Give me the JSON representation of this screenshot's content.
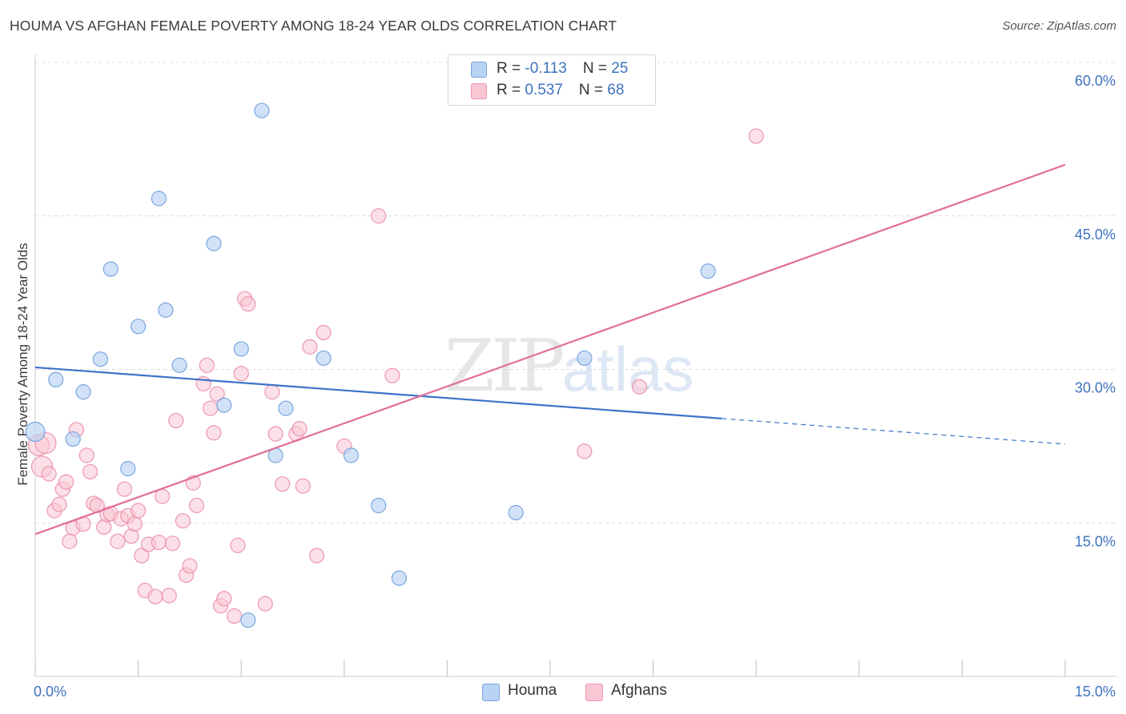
{
  "header": {
    "title": "HOUMA VS AFGHAN FEMALE POVERTY AMONG 18-24 YEAR OLDS CORRELATION CHART",
    "source": "Source: ZipAtlas.com"
  },
  "watermark": {
    "zip": "ZIP",
    "atlas": "atlas"
  },
  "colors": {
    "houma_fill": "#b9d3f5",
    "houma_stroke": "#7aa6de",
    "houma_line": "#3d72c8",
    "afghans_fill": "#f9c6d4",
    "afghans_stroke": "#ec95b0",
    "afghans_line": "#e06e97",
    "tick_label": "#3d72c0",
    "grid": "#dcdcdc"
  },
  "legend": {
    "rows": [
      {
        "r_label": "R = ",
        "r_value": "-0.113",
        "n_label": "N = ",
        "n_value": "25"
      },
      {
        "r_label": "R = ",
        "r_value": "0.537",
        "n_label": "N = ",
        "n_value": "68"
      }
    ],
    "bottom": [
      "Houma",
      "Afghans"
    ]
  },
  "chart_data": {
    "type": "scatter",
    "title": "HOUMA VS AFGHAN FEMALE POVERTY AMONG 18-24 YEAR OLDS CORRELATION CHART",
    "xlabel": "",
    "ylabel": "Female Poverty Among 18-24 Year Olds",
    "xlim": [
      0,
      15
    ],
    "ylim": [
      0,
      60
    ],
    "x_tick_labels": [
      "0.0%",
      "15.0%"
    ],
    "y_ticks": [
      15,
      30,
      45,
      60
    ],
    "y_tick_labels": [
      "15.0%",
      "30.0%",
      "45.0%",
      "60.0%"
    ],
    "grid": true,
    "legend_position": "top-center",
    "series": [
      {
        "name": "Houma",
        "r": -0.113,
        "n": 25,
        "trend": {
          "x0": 0,
          "y0": 30.2,
          "x1": 10,
          "y1": 25.2,
          "dash_to_x": 15,
          "dash_to_y": 22.7
        },
        "points": [
          [
            0.0,
            23.9
          ],
          [
            0.3,
            29.0
          ],
          [
            0.55,
            23.2
          ],
          [
            0.7,
            27.8
          ],
          [
            0.95,
            31.0
          ],
          [
            1.1,
            39.8
          ],
          [
            1.35,
            20.3
          ],
          [
            1.5,
            34.2
          ],
          [
            1.8,
            46.7
          ],
          [
            1.9,
            35.8
          ],
          [
            2.1,
            30.4
          ],
          [
            2.6,
            42.3
          ],
          [
            2.75,
            26.5
          ],
          [
            3.0,
            32.0
          ],
          [
            3.1,
            5.5
          ],
          [
            3.3,
            55.3
          ],
          [
            3.5,
            21.6
          ],
          [
            3.65,
            26.2
          ],
          [
            4.2,
            31.1
          ],
          [
            4.6,
            21.6
          ],
          [
            5.0,
            16.7
          ],
          [
            5.3,
            9.6
          ],
          [
            7.0,
            16.0
          ],
          [
            8.0,
            31.1
          ],
          [
            9.8,
            39.6
          ]
        ]
      },
      {
        "name": "Afghans",
        "r": 0.537,
        "n": 68,
        "trend": {
          "x0": 0,
          "y0": 13.9,
          "x1": 15,
          "y1": 50.0
        },
        "points": [
          [
            0.05,
            22.6
          ],
          [
            0.1,
            20.5
          ],
          [
            0.15,
            22.8
          ],
          [
            0.2,
            19.8
          ],
          [
            0.28,
            16.2
          ],
          [
            0.35,
            16.8
          ],
          [
            0.4,
            18.3
          ],
          [
            0.45,
            19.0
          ],
          [
            0.5,
            13.2
          ],
          [
            0.55,
            14.5
          ],
          [
            0.6,
            24.1
          ],
          [
            0.7,
            14.9
          ],
          [
            0.75,
            21.6
          ],
          [
            0.8,
            20.0
          ],
          [
            0.85,
            16.9
          ],
          [
            0.9,
            16.7
          ],
          [
            1.0,
            14.6
          ],
          [
            1.05,
            15.8
          ],
          [
            1.1,
            15.9
          ],
          [
            1.2,
            13.2
          ],
          [
            1.25,
            15.4
          ],
          [
            1.3,
            18.3
          ],
          [
            1.35,
            15.7
          ],
          [
            1.4,
            13.7
          ],
          [
            1.45,
            14.9
          ],
          [
            1.5,
            16.2
          ],
          [
            1.55,
            11.8
          ],
          [
            1.6,
            8.4
          ],
          [
            1.65,
            12.9
          ],
          [
            1.75,
            7.8
          ],
          [
            1.8,
            13.1
          ],
          [
            1.85,
            17.6
          ],
          [
            1.95,
            7.9
          ],
          [
            2.0,
            13.0
          ],
          [
            2.05,
            25.0
          ],
          [
            2.15,
            15.2
          ],
          [
            2.2,
            9.9
          ],
          [
            2.25,
            10.8
          ],
          [
            2.3,
            18.9
          ],
          [
            2.35,
            16.7
          ],
          [
            2.45,
            28.6
          ],
          [
            2.5,
            30.4
          ],
          [
            2.55,
            26.2
          ],
          [
            2.6,
            23.8
          ],
          [
            2.65,
            27.6
          ],
          [
            2.7,
            6.9
          ],
          [
            2.75,
            7.6
          ],
          [
            2.9,
            5.9
          ],
          [
            2.95,
            12.8
          ],
          [
            3.0,
            29.6
          ],
          [
            3.05,
            36.9
          ],
          [
            3.1,
            36.4
          ],
          [
            3.35,
            7.1
          ],
          [
            3.45,
            27.8
          ],
          [
            3.5,
            23.7
          ],
          [
            3.6,
            18.8
          ],
          [
            3.8,
            23.7
          ],
          [
            3.85,
            24.2
          ],
          [
            3.9,
            18.6
          ],
          [
            4.0,
            32.2
          ],
          [
            4.1,
            11.8
          ],
          [
            4.2,
            33.6
          ],
          [
            4.5,
            22.5
          ],
          [
            5.0,
            45.0
          ],
          [
            5.2,
            29.4
          ],
          [
            8.0,
            22.0
          ],
          [
            8.8,
            28.3
          ],
          [
            10.5,
            52.8
          ]
        ]
      }
    ]
  }
}
